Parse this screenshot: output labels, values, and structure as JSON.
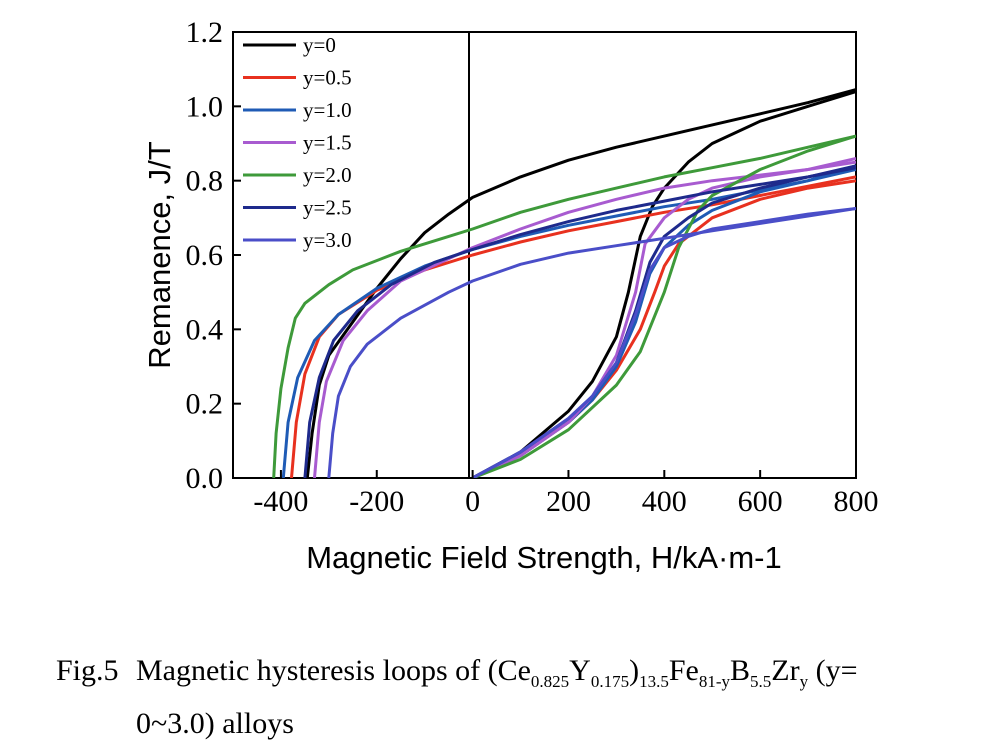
{
  "chart_data": {
    "type": "line",
    "title": "",
    "xlabel": "Magnetic Field Strength, H/kA·m-1",
    "ylabel": "Remanence, J/T",
    "xlim": [
      -500,
      800
    ],
    "ylim": [
      0,
      1.2
    ],
    "xticks": [
      "-400",
      "-200",
      "0",
      "200",
      "400",
      "600",
      "800"
    ],
    "yticks": [
      "0.0",
      "0.2",
      "0.4",
      "0.6",
      "0.8",
      "1.0",
      "1.2"
    ],
    "grid": false,
    "legend_position": "top-left",
    "series": [
      {
        "name": "y=0",
        "color": "#000000",
        "demag": [
          [
            -345,
            0
          ],
          [
            -335,
            0.12
          ],
          [
            -320,
            0.25
          ],
          [
            -300,
            0.33
          ],
          [
            -250,
            0.42
          ],
          [
            -200,
            0.51
          ],
          [
            -150,
            0.59
          ],
          [
            -100,
            0.66
          ],
          [
            -50,
            0.71
          ],
          [
            0,
            0.755
          ],
          [
            100,
            0.81
          ],
          [
            200,
            0.855
          ],
          [
            300,
            0.89
          ],
          [
            400,
            0.92
          ],
          [
            500,
            0.95
          ],
          [
            600,
            0.98
          ],
          [
            700,
            1.01
          ],
          [
            800,
            1.045
          ]
        ],
        "virgin": [
          [
            0,
            0
          ],
          [
            100,
            0.07
          ],
          [
            200,
            0.18
          ],
          [
            250,
            0.26
          ],
          [
            300,
            0.38
          ],
          [
            325,
            0.5
          ],
          [
            350,
            0.65
          ],
          [
            375,
            0.73
          ],
          [
            400,
            0.78
          ],
          [
            450,
            0.85
          ],
          [
            500,
            0.9
          ],
          [
            600,
            0.96
          ],
          [
            700,
            1.0
          ],
          [
            800,
            1.04
          ]
        ]
      },
      {
        "name": "y=0.5",
        "color": "#e8311f",
        "demag": [
          [
            -378,
            0
          ],
          [
            -368,
            0.15
          ],
          [
            -350,
            0.28
          ],
          [
            -320,
            0.38
          ],
          [
            -280,
            0.44
          ],
          [
            -200,
            0.505
          ],
          [
            -100,
            0.56
          ],
          [
            0,
            0.6
          ],
          [
            100,
            0.635
          ],
          [
            200,
            0.665
          ],
          [
            300,
            0.69
          ],
          [
            400,
            0.715
          ],
          [
            500,
            0.735
          ],
          [
            600,
            0.76
          ],
          [
            700,
            0.785
          ],
          [
            800,
            0.81
          ]
        ],
        "virgin": [
          [
            0,
            0
          ],
          [
            100,
            0.06
          ],
          [
            200,
            0.15
          ],
          [
            250,
            0.21
          ],
          [
            300,
            0.29
          ],
          [
            350,
            0.4
          ],
          [
            380,
            0.5
          ],
          [
            400,
            0.57
          ],
          [
            430,
            0.63
          ],
          [
            500,
            0.7
          ],
          [
            600,
            0.75
          ],
          [
            700,
            0.78
          ],
          [
            800,
            0.8
          ]
        ]
      },
      {
        "name": "y=1.0",
        "color": "#1f5bb5",
        "demag": [
          [
            -395,
            0
          ],
          [
            -385,
            0.15
          ],
          [
            -365,
            0.27
          ],
          [
            -330,
            0.37
          ],
          [
            -280,
            0.44
          ],
          [
            -200,
            0.51
          ],
          [
            -100,
            0.57
          ],
          [
            0,
            0.615
          ],
          [
            100,
            0.65
          ],
          [
            200,
            0.68
          ],
          [
            300,
            0.705
          ],
          [
            400,
            0.73
          ],
          [
            500,
            0.75
          ],
          [
            600,
            0.775
          ],
          [
            700,
            0.8
          ],
          [
            800,
            0.83
          ]
        ],
        "virgin": [
          [
            0,
            0
          ],
          [
            100,
            0.06
          ],
          [
            200,
            0.15
          ],
          [
            250,
            0.21
          ],
          [
            300,
            0.3
          ],
          [
            340,
            0.42
          ],
          [
            370,
            0.55
          ],
          [
            400,
            0.62
          ],
          [
            450,
            0.68
          ],
          [
            500,
            0.72
          ],
          [
            600,
            0.77
          ],
          [
            700,
            0.8
          ],
          [
            800,
            0.84
          ]
        ]
      },
      {
        "name": "y=1.5",
        "color": "#a85bd0",
        "demag": [
          [
            -330,
            0
          ],
          [
            -320,
            0.15
          ],
          [
            -305,
            0.26
          ],
          [
            -270,
            0.37
          ],
          [
            -220,
            0.45
          ],
          [
            -150,
            0.53
          ],
          [
            -50,
            0.59
          ],
          [
            0,
            0.62
          ],
          [
            100,
            0.67
          ],
          [
            200,
            0.715
          ],
          [
            300,
            0.75
          ],
          [
            400,
            0.78
          ],
          [
            500,
            0.8
          ],
          [
            600,
            0.815
          ],
          [
            700,
            0.83
          ],
          [
            800,
            0.85
          ]
        ],
        "virgin": [
          [
            0,
            0
          ],
          [
            100,
            0.06
          ],
          [
            200,
            0.15
          ],
          [
            250,
            0.22
          ],
          [
            300,
            0.33
          ],
          [
            340,
            0.5
          ],
          [
            360,
            0.63
          ],
          [
            400,
            0.7
          ],
          [
            450,
            0.75
          ],
          [
            500,
            0.78
          ],
          [
            600,
            0.81
          ],
          [
            700,
            0.83
          ],
          [
            800,
            0.86
          ]
        ]
      },
      {
        "name": "y=2.0",
        "color": "#3e9a3a",
        "demag": [
          [
            -415,
            0
          ],
          [
            -410,
            0.12
          ],
          [
            -400,
            0.24
          ],
          [
            -385,
            0.35
          ],
          [
            -370,
            0.43
          ],
          [
            -350,
            0.47
          ],
          [
            -300,
            0.52
          ],
          [
            -250,
            0.56
          ],
          [
            -150,
            0.61
          ],
          [
            -50,
            0.65
          ],
          [
            0,
            0.67
          ],
          [
            100,
            0.715
          ],
          [
            200,
            0.75
          ],
          [
            300,
            0.78
          ],
          [
            400,
            0.81
          ],
          [
            500,
            0.835
          ],
          [
            600,
            0.86
          ],
          [
            700,
            0.89
          ],
          [
            800,
            0.92
          ]
        ],
        "virgin": [
          [
            0,
            0
          ],
          [
            100,
            0.05
          ],
          [
            200,
            0.13
          ],
          [
            300,
            0.25
          ],
          [
            350,
            0.34
          ],
          [
            400,
            0.5
          ],
          [
            430,
            0.62
          ],
          [
            470,
            0.72
          ],
          [
            500,
            0.76
          ],
          [
            600,
            0.83
          ],
          [
            700,
            0.88
          ],
          [
            800,
            0.92
          ]
        ]
      },
      {
        "name": "y=2.5",
        "color": "#1e2a8c",
        "demag": [
          [
            -350,
            0
          ],
          [
            -340,
            0.15
          ],
          [
            -320,
            0.27
          ],
          [
            -290,
            0.37
          ],
          [
            -240,
            0.45
          ],
          [
            -170,
            0.52
          ],
          [
            -80,
            0.58
          ],
          [
            0,
            0.615
          ],
          [
            100,
            0.655
          ],
          [
            200,
            0.69
          ],
          [
            300,
            0.72
          ],
          [
            400,
            0.745
          ],
          [
            500,
            0.77
          ],
          [
            600,
            0.79
          ],
          [
            700,
            0.81
          ],
          [
            800,
            0.835
          ]
        ],
        "virgin": [
          [
            0,
            0
          ],
          [
            100,
            0.07
          ],
          [
            200,
            0.16
          ],
          [
            250,
            0.22
          ],
          [
            300,
            0.31
          ],
          [
            340,
            0.45
          ],
          [
            370,
            0.58
          ],
          [
            400,
            0.65
          ],
          [
            450,
            0.7
          ],
          [
            500,
            0.74
          ],
          [
            600,
            0.78
          ],
          [
            700,
            0.81
          ],
          [
            800,
            0.84
          ]
        ]
      },
      {
        "name": "y=3.0",
        "color": "#4a4ec8",
        "demag": [
          [
            -300,
            0
          ],
          [
            -292,
            0.12
          ],
          [
            -280,
            0.22
          ],
          [
            -255,
            0.3
          ],
          [
            -220,
            0.36
          ],
          [
            -150,
            0.43
          ],
          [
            -50,
            0.5
          ],
          [
            0,
            0.53
          ],
          [
            100,
            0.575
          ],
          [
            200,
            0.605
          ],
          [
            300,
            0.625
          ],
          [
            400,
            0.645
          ],
          [
            500,
            0.665
          ],
          [
            600,
            0.685
          ],
          [
            700,
            0.705
          ],
          [
            800,
            0.725
          ]
        ],
        "virgin": [
          [
            0,
            0
          ],
          [
            100,
            0.07
          ],
          [
            200,
            0.16
          ],
          [
            250,
            0.22
          ],
          [
            300,
            0.31
          ],
          [
            340,
            0.44
          ],
          [
            370,
            0.56
          ],
          [
            400,
            0.62
          ],
          [
            450,
            0.65
          ],
          [
            500,
            0.67
          ],
          [
            600,
            0.69
          ],
          [
            700,
            0.71
          ],
          [
            800,
            0.725
          ]
        ]
      }
    ]
  },
  "caption": {
    "fig_label": "Fig.5",
    "text_prefix": "Magnetic hysteresis loops of (Ce",
    "sub1": "0.825",
    "mid1": "Y",
    "sub2": "0.175",
    "mid2": ")",
    "sub3": "13.5",
    "mid3": "Fe",
    "sub4": "81-y",
    "mid4": "B",
    "sub5": "5.5",
    "mid5": "Zr",
    "sub6": "y",
    "text_suffix": " (y=",
    "line2": "0~3.0) alloys"
  }
}
